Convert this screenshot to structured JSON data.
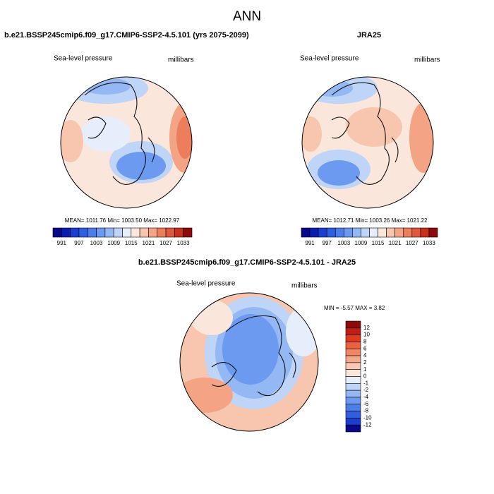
{
  "title": "ANN",
  "panels": [
    {
      "title": "b.e21.BSSP245cmip6.f09_g17.CMIP6-SSP2-4.5.101 (yrs 2075-2099)",
      "left_label": "Sea-level pressure",
      "right_label": "millibars",
      "stats": "MEAN= 1011.76  Min= 1003.50  Max= 1022.97"
    },
    {
      "title": "JRA25",
      "left_label": "Sea-level pressure",
      "right_label": "millibars",
      "stats": "MEAN= 1012.71  Min= 1003.26  Max= 1021.22"
    },
    {
      "title": "b.e21.BSSP245cmip6.f09_g17.CMIP6-SSP2-4.5.101 - JRA25",
      "left_label": "Sea-level pressure",
      "right_label": "millibars",
      "stats": "MIN =  -5.57 MAX =   3.82"
    }
  ],
  "colorbar_abs": {
    "labels": [
      991,
      997,
      1003,
      1009,
      1015,
      1021,
      1027,
      1033
    ],
    "colors": [
      "#08088a",
      "#0a1fb0",
      "#1a3fd0",
      "#2f5fe0",
      "#4a7ee8",
      "#6c9af0",
      "#94b8f4",
      "#bfd5f8",
      "#e6eefc",
      "#fbe6dc",
      "#f8c6ae",
      "#f4a484",
      "#ec7e5c",
      "#e0583c",
      "#c8301e",
      "#8c0a0a"
    ]
  },
  "colorbar_diff": {
    "labels": [
      12,
      10,
      8,
      6,
      4,
      2,
      1,
      0,
      -1,
      -2,
      -4,
      -6,
      -8,
      -10,
      -12
    ],
    "colors": [
      "#8c0a0a",
      "#c01e14",
      "#e03a1e",
      "#ec6040",
      "#f28662",
      "#f6a88a",
      "#f9c8b2",
      "#fbe6dc",
      "#e6eefc",
      "#bfd5f8",
      "#94b8f4",
      "#6c9af0",
      "#4a7ee8",
      "#2f5fe0",
      "#1a3fd0",
      "#08088a"
    ]
  }
}
